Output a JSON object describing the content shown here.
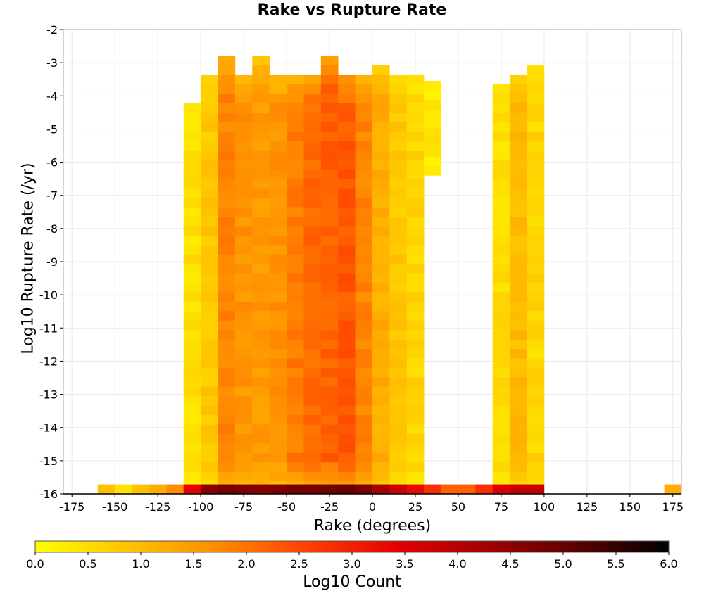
{
  "chart_data": {
    "type": "heatmap",
    "title": "Rake vs Rupture Rate",
    "xlabel": "Rake (degrees)",
    "ylabel": "Log10 Rupture Rate (/yr)",
    "xlim": [
      -180,
      180
    ],
    "ylim": [
      -16,
      -2
    ],
    "xticks": [
      -175,
      -150,
      -125,
      -100,
      -75,
      -50,
      -25,
      0,
      25,
      50,
      75,
      100,
      125,
      150,
      175
    ],
    "yticks": [
      -2,
      -3,
      -4,
      -5,
      -6,
      -7,
      -8,
      -9,
      -10,
      -11,
      -12,
      -13,
      -14,
      -15,
      -16
    ],
    "grid": true,
    "bin_width_deg": 10,
    "bin_height_log": 0.285,
    "colorbar": {
      "label": "Log10 Count",
      "range": [
        0.0,
        6.0
      ],
      "ticks": [
        "0.0",
        "0.5",
        "1.0",
        "1.5",
        "2.0",
        "2.5",
        "3.0",
        "3.5",
        "4.0",
        "4.5",
        "5.0",
        "5.5",
        "6.0"
      ],
      "colormap": [
        "#ffff00",
        "#ffc400",
        "#ff8c00",
        "#ff4000",
        "#e40000",
        "#a00000",
        "#5a0000",
        "#000000"
      ]
    },
    "description_of_cells": "Approximate log10 counts per rake bin and rate row",
    "rake_bins": [
      -155,
      -145,
      -135,
      -125,
      -115,
      -105,
      -95,
      -85,
      -75,
      -65,
      -55,
      -45,
      -35,
      -25,
      -15,
      -5,
      5,
      15,
      25,
      35,
      45,
      55,
      65,
      75,
      85,
      95,
      175
    ],
    "cells": [
      {
        "rake_bin": -105,
        "rate_from": -15.9,
        "rate_to": -4.2,
        "typical_log_count": 0.45
      },
      {
        "rake_bin": -95,
        "rate_from": -15.9,
        "rate_to": -3.3,
        "typical_log_count": 0.8
      },
      {
        "rake_bin": -85,
        "rate_from": -15.9,
        "rate_to": -2.7,
        "typical_log_count": 1.8
      },
      {
        "rake_bin": -75,
        "rate_from": -15.9,
        "rate_to": -3.3,
        "typical_log_count": 1.6
      },
      {
        "rake_bin": -65,
        "rate_from": -15.9,
        "rate_to": -2.7,
        "typical_log_count": 1.5
      },
      {
        "rake_bin": -55,
        "rate_from": -15.9,
        "rate_to": -3.3,
        "typical_log_count": 1.6
      },
      {
        "rake_bin": -45,
        "rate_from": -15.9,
        "rate_to": -3.3,
        "typical_log_count": 1.9
      },
      {
        "rake_bin": -35,
        "rate_from": -15.9,
        "rate_to": -3.3,
        "typical_log_count": 2.1
      },
      {
        "rake_bin": -25,
        "rate_from": -15.9,
        "rate_to": -2.7,
        "typical_log_count": 2.2
      },
      {
        "rake_bin": -15,
        "rate_from": -15.9,
        "rate_to": -3.3,
        "typical_log_count": 2.3
      },
      {
        "rake_bin": -5,
        "rate_from": -15.9,
        "rate_to": -3.3,
        "typical_log_count": 1.8
      },
      {
        "rake_bin": 5,
        "rate_from": -15.9,
        "rate_to": -3.0,
        "typical_log_count": 1.2
      },
      {
        "rake_bin": 15,
        "rate_from": -15.9,
        "rate_to": -3.3,
        "typical_log_count": 0.8
      },
      {
        "rake_bin": 25,
        "rate_from": -15.9,
        "rate_to": -3.3,
        "typical_log_count": 0.6
      },
      {
        "rake_bin": 35,
        "rate_from": -6.4,
        "rate_to": -3.6,
        "typical_log_count": 0.4
      },
      {
        "rake_bin": 75,
        "rate_from": -15.9,
        "rate_to": -3.6,
        "typical_log_count": 0.5
      },
      {
        "rake_bin": 85,
        "rate_from": -15.9,
        "rate_to": -3.3,
        "typical_log_count": 1.0
      },
      {
        "rake_bin": 95,
        "rate_from": -15.9,
        "rate_to": -3.0,
        "typical_log_count": 0.6
      }
    ],
    "bottom_row": {
      "rate": -16,
      "bins": [
        {
          "rake_bin": -155,
          "log_count": 0.9
        },
        {
          "rake_bin": -145,
          "log_count": 0.4
        },
        {
          "rake_bin": -135,
          "log_count": 0.9
        },
        {
          "rake_bin": -125,
          "log_count": 1.2
        },
        {
          "rake_bin": -115,
          "log_count": 1.7
        },
        {
          "rake_bin": -105,
          "log_count": 3.4
        },
        {
          "rake_bin": -95,
          "log_count": 4.6
        },
        {
          "rake_bin": -85,
          "log_count": 4.8
        },
        {
          "rake_bin": -75,
          "log_count": 4.7
        },
        {
          "rake_bin": -65,
          "log_count": 4.6
        },
        {
          "rake_bin": -55,
          "log_count": 4.7
        },
        {
          "rake_bin": -45,
          "log_count": 4.8
        },
        {
          "rake_bin": -35,
          "log_count": 4.8
        },
        {
          "rake_bin": -25,
          "log_count": 4.9
        },
        {
          "rake_bin": -15,
          "log_count": 5.0
        },
        {
          "rake_bin": -5,
          "log_count": 4.7
        },
        {
          "rake_bin": 5,
          "log_count": 4.2
        },
        {
          "rake_bin": 15,
          "log_count": 3.7
        },
        {
          "rake_bin": 25,
          "log_count": 3.3
        },
        {
          "rake_bin": 35,
          "log_count": 2.8
        },
        {
          "rake_bin": 45,
          "log_count": 2.2
        },
        {
          "rake_bin": 55,
          "log_count": 2.2
        },
        {
          "rake_bin": 65,
          "log_count": 2.8
        },
        {
          "rake_bin": 75,
          "log_count": 3.5
        },
        {
          "rake_bin": 85,
          "log_count": 3.8
        },
        {
          "rake_bin": 95,
          "log_count": 3.8
        },
        {
          "rake_bin": 175,
          "log_count": 1.2
        }
      ]
    }
  }
}
